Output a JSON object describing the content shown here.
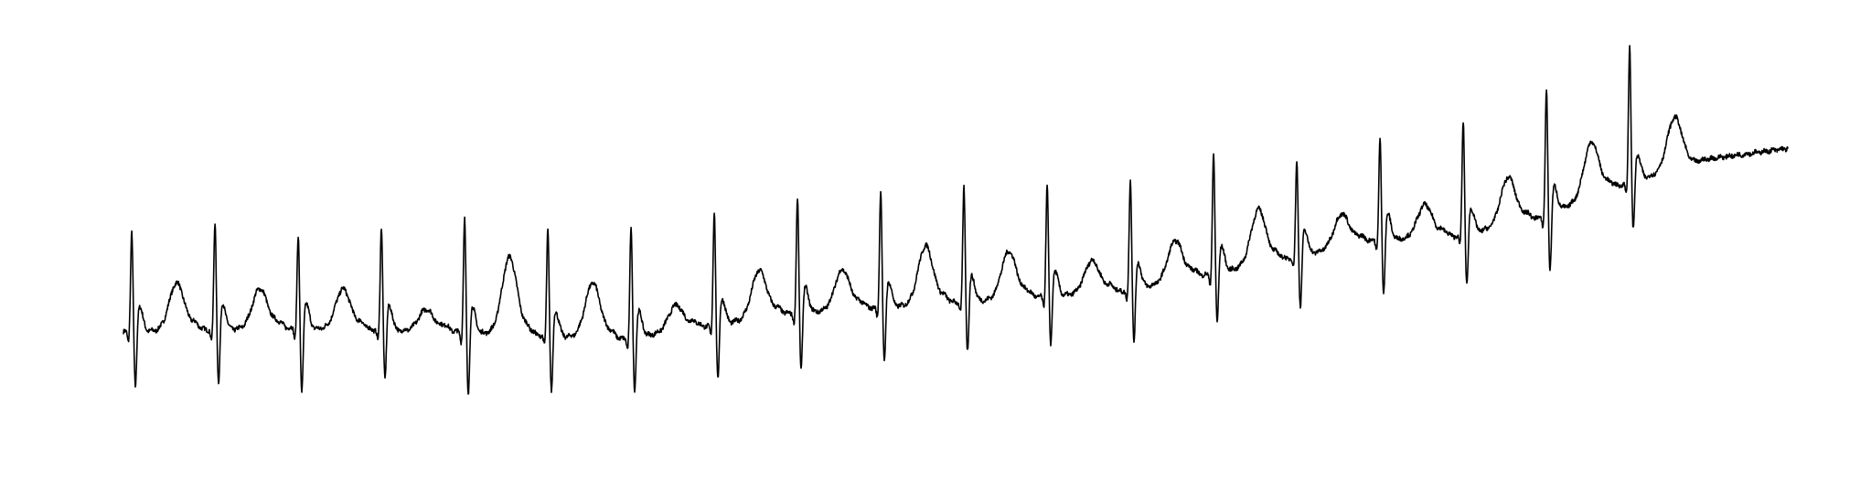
{
  "chart_data": {
    "type": "line",
    "title": "",
    "xlabel": "",
    "ylabel": "",
    "axes_visible": false,
    "grid": false,
    "legend": "none",
    "xlim": [
      0,
      10
    ],
    "ylim": [
      -1.6,
      4.2
    ],
    "baseline_drift": [
      [
        0,
        0.05
      ],
      [
        1.0,
        0.1
      ],
      [
        2.0,
        0.05
      ],
      [
        3.0,
        -0.05
      ],
      [
        4.0,
        0.3
      ],
      [
        5.0,
        0.45
      ],
      [
        6.0,
        0.6
      ],
      [
        7.0,
        1.05
      ],
      [
        7.5,
        1.3
      ],
      [
        8.0,
        1.35
      ],
      [
        8.5,
        1.6
      ],
      [
        9.0,
        2.05
      ],
      [
        9.5,
        2.4
      ],
      [
        10.0,
        2.55
      ]
    ],
    "beats": [
      {
        "t": 0.05,
        "r": 1.35,
        "s": -0.95,
        "tw": 0.65
      },
      {
        "t": 0.55,
        "r": 1.45,
        "s": -0.9,
        "tw": 0.55
      },
      {
        "t": 1.05,
        "r": 1.25,
        "s": -1.05,
        "tw": 0.55
      },
      {
        "t": 1.55,
        "r": 1.4,
        "s": -0.85,
        "tw": 0.3
      },
      {
        "t": 2.05,
        "r": 1.55,
        "s": -1.05,
        "tw": 1.05
      },
      {
        "t": 2.55,
        "r": 1.45,
        "s": -0.95,
        "tw": 0.75
      },
      {
        "t": 3.05,
        "r": 1.5,
        "s": -0.9,
        "tw": 0.35
      },
      {
        "t": 3.55,
        "r": 1.55,
        "s": -0.95,
        "tw": 0.65
      },
      {
        "t": 4.05,
        "r": 1.55,
        "s": -0.95,
        "tw": 0.55
      },
      {
        "t": 4.55,
        "r": 1.6,
        "s": -0.95,
        "tw": 0.8
      },
      {
        "t": 5.05,
        "r": 1.55,
        "s": -0.85,
        "tw": 0.65
      },
      {
        "t": 5.55,
        "r": 1.5,
        "s": -0.85,
        "tw": 0.45
      },
      {
        "t": 6.05,
        "r": 1.5,
        "s": -0.9,
        "tw": 0.55
      },
      {
        "t": 6.55,
        "r": 1.6,
        "s": -0.85,
        "tw": 0.75
      },
      {
        "t": 7.05,
        "r": 1.3,
        "s": -0.9,
        "tw": 0.45
      },
      {
        "t": 7.55,
        "r": 1.35,
        "s": -0.9,
        "tw": 0.45
      },
      {
        "t": 8.05,
        "r": 1.55,
        "s": -0.9,
        "tw": 0.65
      },
      {
        "t": 8.55,
        "r": 1.7,
        "s": -0.95,
        "tw": 0.75
      },
      {
        "t": 9.05,
        "r": 1.85,
        "s": -0.85,
        "tw": 0.7
      }
    ],
    "color": "#000000"
  }
}
